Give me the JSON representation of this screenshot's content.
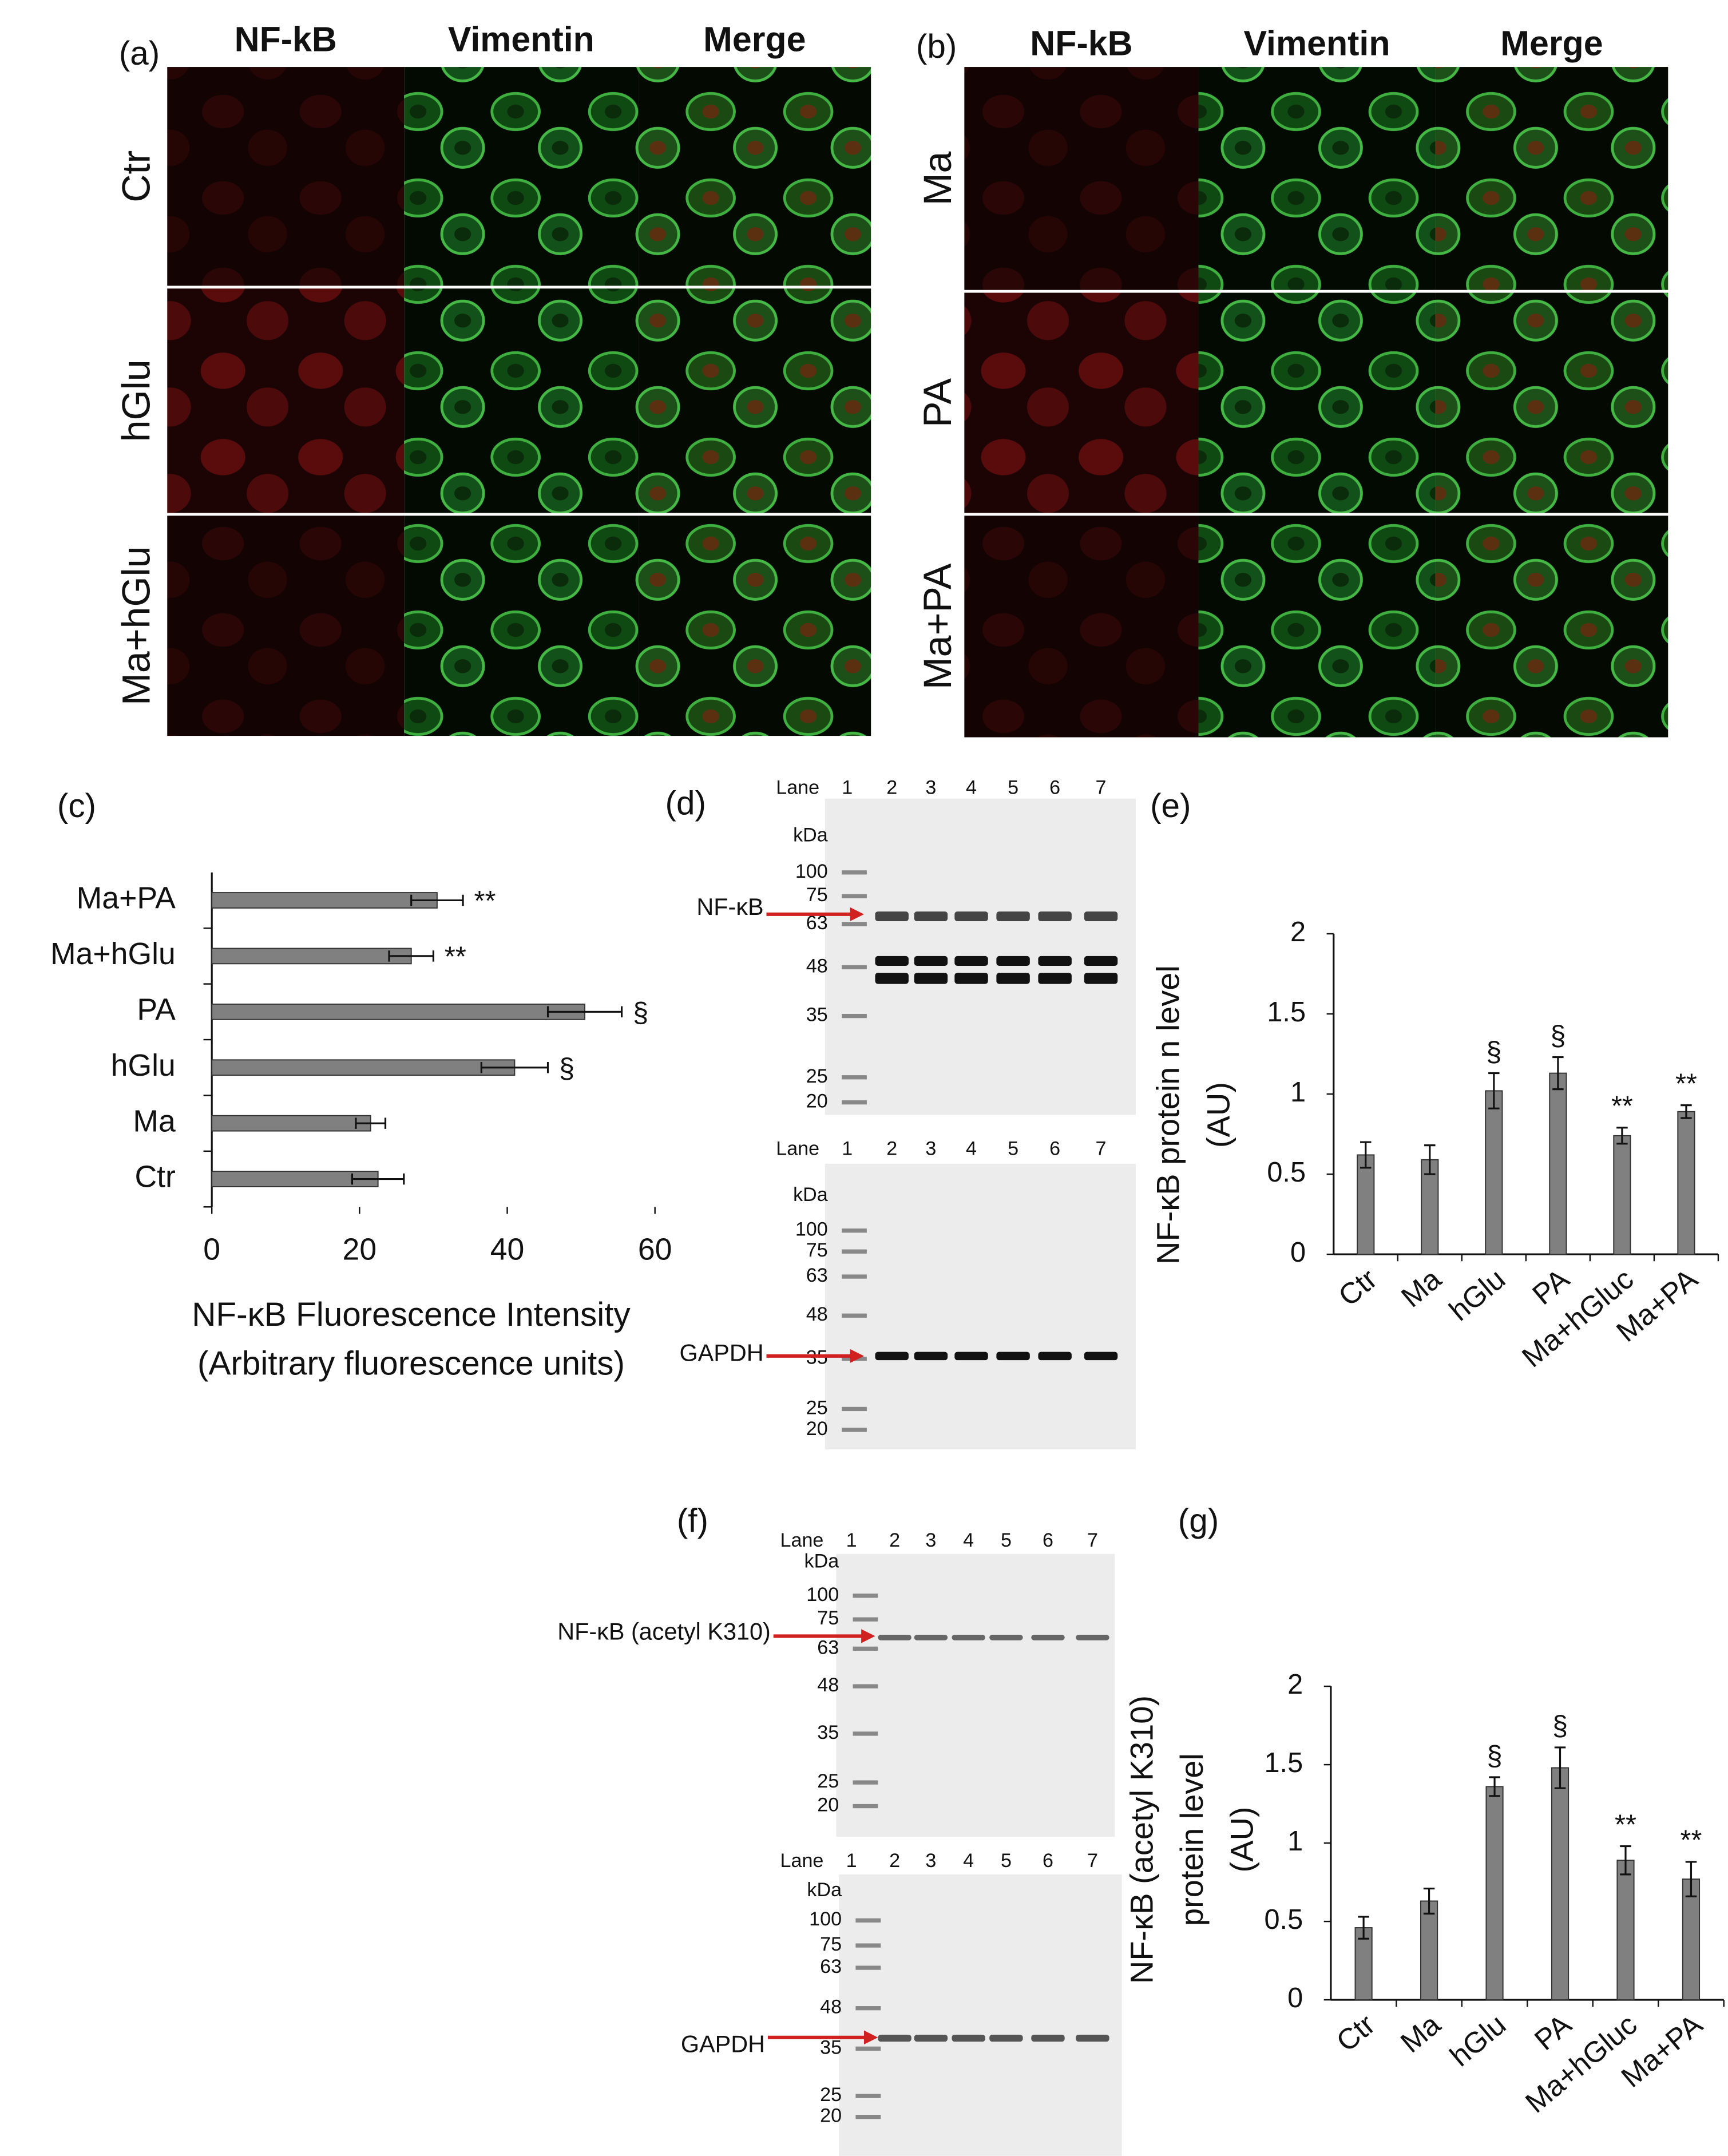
{
  "panels": {
    "a": {
      "label": "(a)",
      "columns": [
        "NF-kB",
        "Vimentin",
        "Merge"
      ],
      "rows": [
        "Ctr",
        "hGlu",
        "Ma+hGlu"
      ]
    },
    "b": {
      "label": "(b)",
      "columns": [
        "NF-kB",
        "Vimentin",
        "Merge"
      ],
      "rows": [
        "Ma",
        "PA",
        "Ma+PA"
      ]
    },
    "d": {
      "label": "(d)",
      "blots": [
        {
          "lane_label": "Lane",
          "lanes": [
            "1",
            "2",
            "3",
            "4",
            "5",
            "6",
            "7"
          ],
          "unit": "kDa",
          "markers": [
            100,
            75,
            63,
            48,
            35,
            25,
            20
          ],
          "target": "NF-κB"
        },
        {
          "lane_label": "Lane",
          "lanes": [
            "1",
            "2",
            "3",
            "4",
            "5",
            "6",
            "7"
          ],
          "unit": "kDa",
          "markers": [
            100,
            75,
            63,
            48,
            35,
            25,
            20
          ],
          "target": "GAPDH"
        }
      ]
    },
    "f": {
      "label": "(f)",
      "blots": [
        {
          "lane_label": "Lane",
          "lanes": [
            "1",
            "2",
            "3",
            "4",
            "5",
            "6",
            "7"
          ],
          "unit": "kDa",
          "markers": [
            100,
            75,
            63,
            48,
            35,
            25,
            20
          ],
          "target": "NF-κB (acetyl K310)"
        },
        {
          "lane_label": "Lane",
          "lanes": [
            "1",
            "2",
            "3",
            "4",
            "5",
            "6",
            "7"
          ],
          "unit": "kDa",
          "markers": [
            100,
            75,
            63,
            48,
            35,
            25,
            20
          ],
          "target": "GAPDH"
        }
      ]
    }
  },
  "chart_data": [
    {
      "type": "bar",
      "orientation": "horizontal",
      "label": "(c)",
      "categories": [
        "Ctr",
        "Ma",
        "hGlu",
        "PA",
        "Ma+hGlu",
        "Ma+PA"
      ],
      "values": [
        22.5,
        21.5,
        41,
        50.5,
        27,
        30.5
      ],
      "errors": [
        3.5,
        2,
        4.5,
        5,
        3,
        3.5
      ],
      "annotations": [
        null,
        null,
        "§",
        "§",
        "**",
        "**"
      ],
      "color": "#808080",
      "xlim": [
        0,
        60
      ],
      "xticks": [
        0,
        20,
        40,
        60
      ],
      "xlabel": [
        "NF-κB Fluorescence Intensity",
        "(Arbitrary fluorescence units)"
      ]
    },
    {
      "type": "bar",
      "orientation": "vertical",
      "label": "(e)",
      "categories": [
        "Ctr",
        "Ma",
        "hGlu",
        "PA",
        "Ma+hGluc",
        "Ma+PA"
      ],
      "values": [
        0.62,
        0.59,
        1.02,
        1.13,
        0.74,
        0.89
      ],
      "errors": [
        0.08,
        0.09,
        0.11,
        0.1,
        0.05,
        0.04
      ],
      "annotations": [
        null,
        null,
        "§",
        "§",
        "**",
        "**"
      ],
      "color": "#808080",
      "ylim": [
        0,
        2
      ],
      "yticks": [
        0,
        0.5,
        1,
        1.5,
        2
      ],
      "ylabel": [
        "NF-κB protein n level",
        "(AU)"
      ]
    },
    {
      "type": "bar",
      "orientation": "vertical",
      "label": "(g)",
      "categories": [
        "Ctr",
        "Ma",
        "hGlu",
        "PA",
        "Ma+hGluc",
        "Ma+PA"
      ],
      "values": [
        0.46,
        0.63,
        1.36,
        1.48,
        0.89,
        0.77
      ],
      "errors": [
        0.07,
        0.08,
        0.06,
        0.13,
        0.09,
        0.11
      ],
      "annotations": [
        null,
        null,
        "§",
        "§",
        "**",
        "**"
      ],
      "color": "#808080",
      "ylim": [
        0,
        2
      ],
      "yticks": [
        0,
        0.5,
        1,
        1.5,
        2
      ],
      "ylabel": [
        "NF-κB (acetyl K310)",
        "protein level",
        "(AU)"
      ]
    }
  ]
}
